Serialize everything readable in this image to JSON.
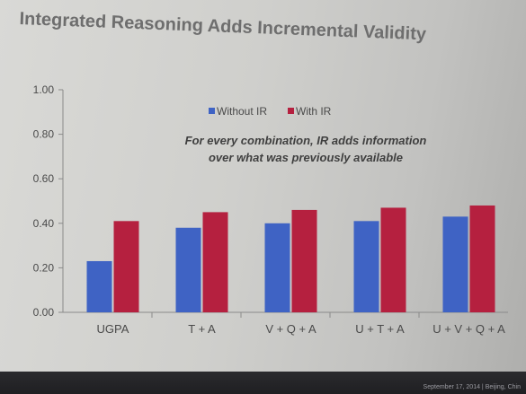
{
  "slide": {
    "title": "Integrated Reasoning Adds Incremental Validity",
    "footer": "September 17, 2014 | Beijing, Chin"
  },
  "colors": {
    "without_ir": "#3f63c4",
    "with_ir": "#b5203f",
    "axis": "#8a8a8a",
    "text": "#4a4a4a"
  },
  "chart_data": {
    "type": "bar",
    "categories": [
      "UGPA",
      "T + A",
      "V + Q + A",
      "U + T + A",
      "U + V + Q + A"
    ],
    "series": [
      {
        "name": "Without IR",
        "values": [
          0.23,
          0.38,
          0.4,
          0.41,
          0.43
        ]
      },
      {
        "name": "With IR",
        "values": [
          0.41,
          0.45,
          0.46,
          0.47,
          0.48
        ]
      }
    ],
    "yticks": [
      "0.00",
      "0.20",
      "0.40",
      "0.60",
      "0.80",
      "1.00"
    ],
    "ylim": [
      0,
      1
    ],
    "annotation": [
      "For every combination, IR adds information",
      "over what was previously available"
    ],
    "legend_position": "top-center",
    "grid": false
  }
}
